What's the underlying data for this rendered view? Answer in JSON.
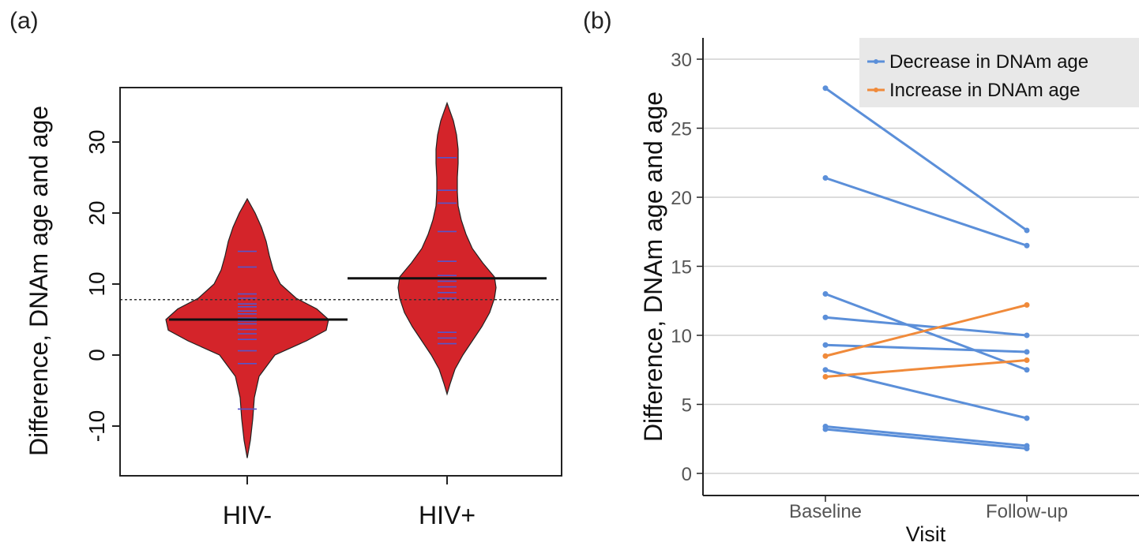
{
  "chart_data": [
    {
      "panel": "(a)",
      "type": "violin",
      "ylabel": "Difference, DNAm age and age",
      "categories": [
        "HIV-",
        "HIV+"
      ],
      "ylim": [
        -15,
        37
      ],
      "yticks": [
        -10,
        0,
        10,
        20,
        30
      ],
      "reference_line": 7.8,
      "groups": [
        {
          "name": "HIV-",
          "mean": 5.0,
          "range": [
            -14.5,
            22
          ],
          "points": [
            14.6,
            12.4,
            8.6,
            8.0,
            7.2,
            6.8,
            6.2,
            5.8,
            5.2,
            4.8,
            4.4,
            3.6,
            3.0,
            2.2,
            0.6,
            -1.2,
            -7.6
          ]
        },
        {
          "name": "HIV+",
          "mean": 10.8,
          "range": [
            -5.5,
            35.5
          ],
          "points": [
            27.8,
            23.2,
            21.4,
            17.4,
            13.2,
            11.2,
            10.4,
            9.6,
            8.8,
            8.0,
            3.2,
            2.4,
            1.6
          ]
        }
      ],
      "fill_color": "#d4242a",
      "point_color": "#5555cc"
    },
    {
      "panel": "(b)",
      "type": "line",
      "xlabel": "Visit",
      "ylabel": "Difference, DNAm age and age",
      "categories": [
        "Baseline",
        "Follow-up"
      ],
      "ylim": [
        -1.5,
        31.5
      ],
      "yticks": [
        0,
        5,
        10,
        15,
        20,
        25,
        30
      ],
      "grid": true,
      "legend_position": "top-right",
      "legend": [
        {
          "label": "Decrease in DNAm age",
          "color": "#5b8fd9"
        },
        {
          "label": "Increase in DNAm age",
          "color": "#f08a3a"
        }
      ],
      "series": [
        {
          "group": "Decrease in DNAm age",
          "values": [
            27.9,
            17.6
          ]
        },
        {
          "group": "Decrease in DNAm age",
          "values": [
            21.4,
            16.5
          ]
        },
        {
          "group": "Decrease in DNAm age",
          "values": [
            13.0,
            7.5
          ]
        },
        {
          "group": "Decrease in DNAm age",
          "values": [
            11.3,
            10.0
          ]
        },
        {
          "group": "Decrease in DNAm age",
          "values": [
            9.3,
            8.8
          ]
        },
        {
          "group": "Decrease in DNAm age",
          "values": [
            7.5,
            4.0
          ]
        },
        {
          "group": "Decrease in DNAm age",
          "values": [
            3.4,
            2.0
          ]
        },
        {
          "group": "Decrease in DNAm age",
          "values": [
            3.2,
            1.8
          ]
        },
        {
          "group": "Increase in DNAm age",
          "values": [
            8.5,
            12.2
          ]
        },
        {
          "group": "Increase in DNAm age",
          "values": [
            7.0,
            8.2
          ]
        }
      ]
    }
  ]
}
